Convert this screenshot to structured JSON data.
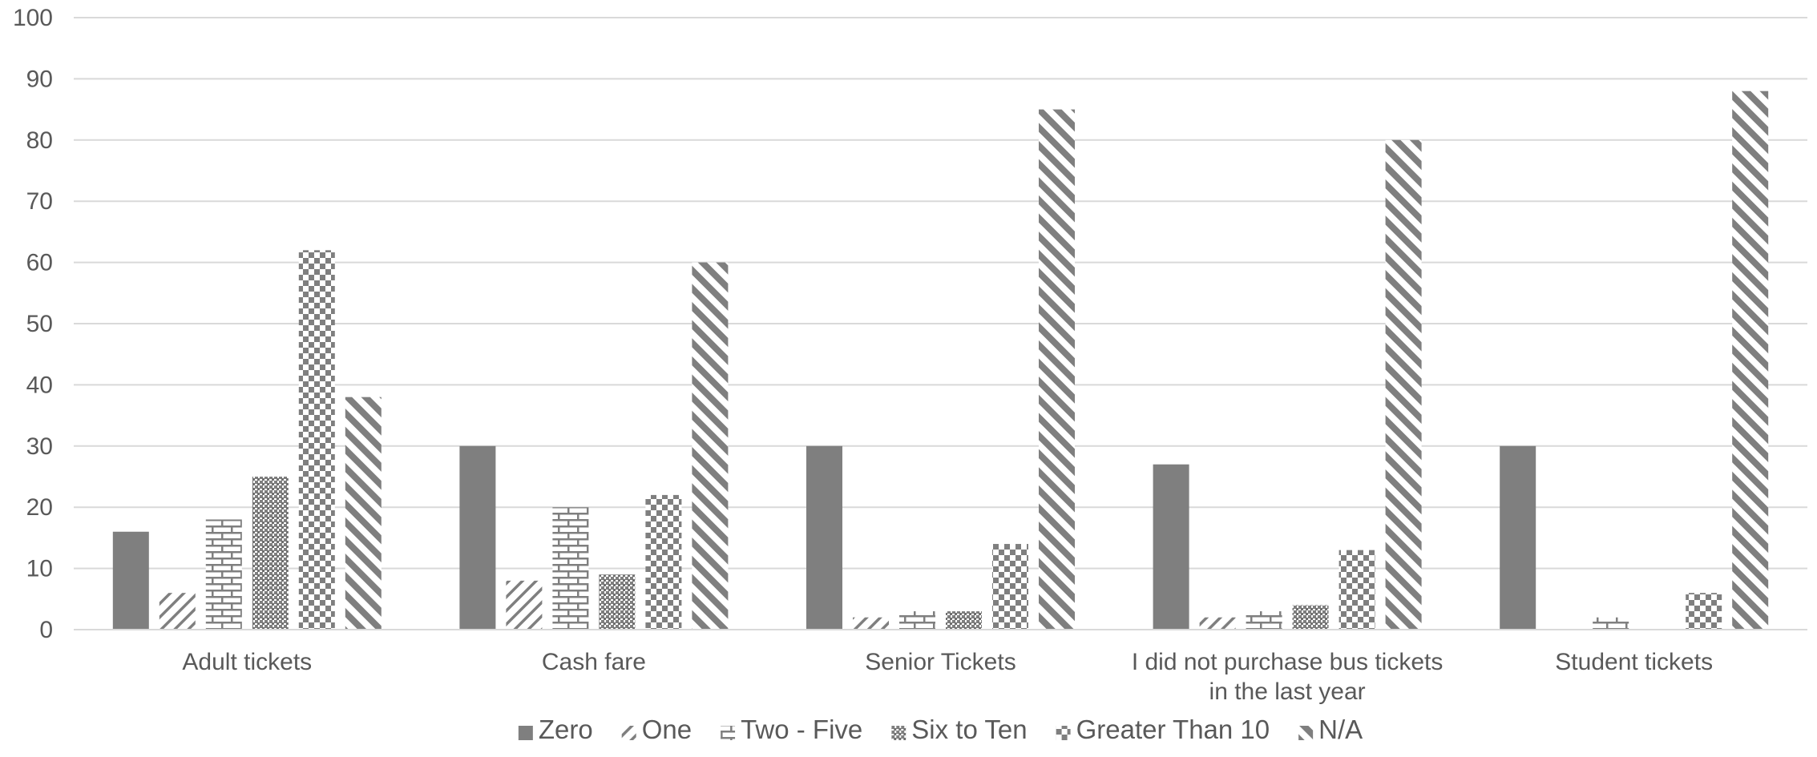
{
  "chart_data": {
    "type": "bar",
    "categories": [
      [
        "Adult tickets"
      ],
      [
        "Cash fare"
      ],
      [
        "Senior Tickets"
      ],
      [
        "I did not purchase bus tickets",
        "in the last year"
      ],
      [
        "Student tickets"
      ]
    ],
    "series": [
      {
        "name": "Zero",
        "pattern": "solid",
        "values": [
          16,
          30,
          30,
          27,
          30
        ]
      },
      {
        "name": "One",
        "pattern": "diag-thin",
        "values": [
          6,
          8,
          2,
          2,
          0
        ]
      },
      {
        "name": "Two - Five",
        "pattern": "brick",
        "values": [
          18,
          20,
          3,
          3,
          2
        ]
      },
      {
        "name": "Six to Ten",
        "pattern": "dots",
        "values": [
          25,
          9,
          3,
          4,
          0
        ]
      },
      {
        "name": "Greater Than 10",
        "pattern": "checker",
        "values": [
          62,
          22,
          14,
          13,
          6
        ]
      },
      {
        "name": "N/A",
        "pattern": "diag-wide",
        "values": [
          38,
          60,
          85,
          80,
          88
        ]
      }
    ],
    "ylim": [
      0,
      100
    ],
    "yticks": [
      0,
      10,
      20,
      30,
      40,
      50,
      60,
      70,
      80,
      90,
      100
    ],
    "grid": true,
    "legend": "bottom-center",
    "colors": {
      "bar": "#7f7f7f",
      "grid": "#d9d9d9",
      "text": "#595959"
    }
  }
}
